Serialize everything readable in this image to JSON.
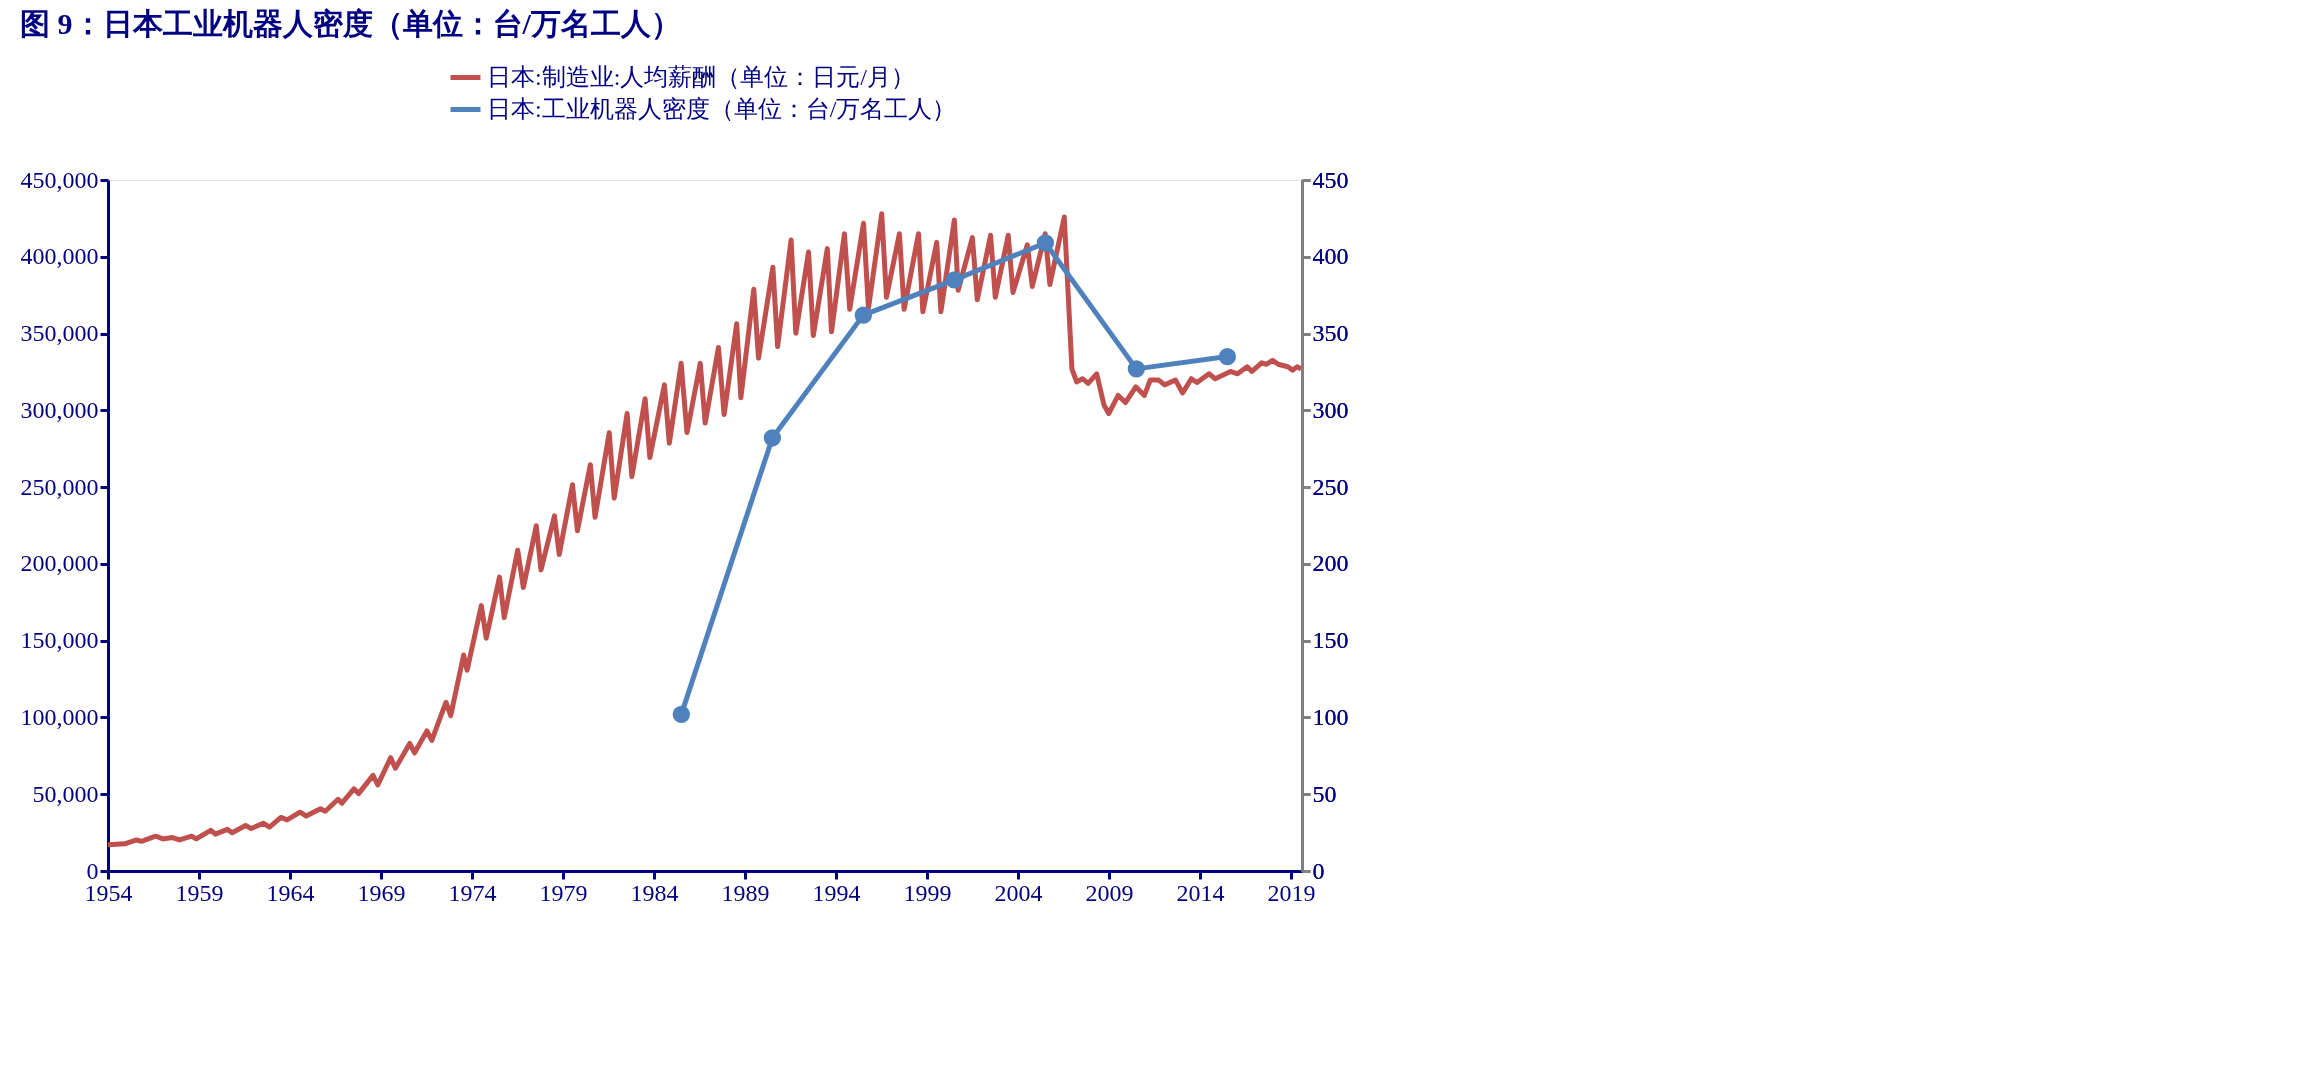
{
  "chart_data": {
    "type": "line",
    "title": "图 9：日本工业机器人密度（单位：台/万名工人）",
    "xlim": [
      1954,
      2019.6
    ],
    "xticks": [
      1954,
      1959,
      1964,
      1969,
      1974,
      1979,
      1984,
      1989,
      1994,
      1999,
      2004,
      2009,
      2014,
      2019
    ],
    "ylim": [
      0,
      450000
    ],
    "yticks": [
      0,
      {
        "value": 50000,
        "label": "50,000"
      },
      {
        "value": 100000,
        "label": "100,000"
      },
      {
        "value": 150000,
        "label": "150,000"
      },
      {
        "value": 200000,
        "label": "200,000"
      },
      {
        "value": 250000,
        "label": "250,000"
      },
      {
        "value": 300000,
        "label": "300,000"
      },
      {
        "value": 350000,
        "label": "350,000"
      },
      {
        "value": 400000,
        "label": "400,000"
      },
      {
        "value": 450000,
        "label": "450,000"
      }
    ],
    "y2lim": [
      0,
      450
    ],
    "y2ticks": [
      0,
      50,
      100,
      150,
      200,
      250,
      300,
      350,
      400,
      450
    ],
    "legend": "top",
    "grid": false,
    "series": [
      {
        "name": "日本:制造业:人均薪酬（单位：日元/月）",
        "color": "#c0504d",
        "marker": "none",
        "x": [
          1954.0,
          1954.92,
          1955.57,
          1955.84,
          1956.62,
          1957.02,
          1957.54,
          1957.93,
          1958.59,
          1958.85,
          1959.64,
          1959.9,
          1960.56,
          1960.82,
          1961.56,
          1961.87,
          1962.53,
          1962.87,
          1963.5,
          1963.84,
          1964.55,
          1964.89,
          1965.67,
          1965.94,
          1966.64,
          1966.85,
          1967.51,
          1967.77,
          1968.56,
          1968.82,
          1969.53,
          1969.79,
          1970.58,
          1970.84,
          1971.52,
          1971.79,
          1972.57,
          1972.83,
          1973.54,
          1973.73,
          1974.51,
          1974.78,
          1975.51,
          1975.77,
          1976.51,
          1976.82,
          1977.53,
          1977.79,
          1978.53,
          1978.79,
          1979.52,
          1979.79,
          1980.5,
          1980.76,
          1981.54,
          1981.81,
          1982.52,
          1982.78,
          1983.51,
          1983.77,
          1984.57,
          1984.84,
          1985.49,
          1985.81,
          1986.54,
          1986.81,
          1987.54,
          1987.85,
          1988.54,
          1988.77,
          1989.48,
          1989.74,
          1990.53,
          1990.79,
          1991.53,
          1991.79,
          1992.49,
          1992.75,
          1993.52,
          1993.75,
          1994.46,
          1994.75,
          1995.51,
          1995.78,
          1996.51,
          1996.77,
          1997.48,
          1997.74,
          1998.53,
          1998.77,
          1999.53,
          1999.76,
          2000.5,
          2000.71,
          2001.49,
          2001.76,
          2002.49,
          2002.75,
          2003.46,
          2003.72,
          2004.51,
          2004.78,
          2005.49,
          2005.75,
          2006.54,
          2006.96,
          2007.22,
          2007.54,
          2007.85,
          2008.32,
          2008.72,
          2008.98,
          2009.5,
          2009.9,
          2010.47,
          2010.94,
          2011.26,
          2011.73,
          2012.05,
          2012.65,
          2013.04,
          2013.52,
          2013.83,
          2014.49,
          2014.83,
          2015.41,
          2015.67,
          2016.06,
          2016.59,
          2016.85,
          2017.38,
          2017.64,
          2017.98,
          2018.29,
          2018.82,
          2019.08,
          2019.34,
          2019.55
        ],
        "values": [
          17100,
          17700,
          20200,
          19300,
          22700,
          20900,
          21800,
          20200,
          22700,
          20900,
          26500,
          24000,
          27100,
          24900,
          29600,
          27700,
          31100,
          28600,
          34900,
          33300,
          38300,
          35800,
          40500,
          38900,
          46700,
          44200,
          53500,
          50400,
          62300,
          56000,
          73800,
          66900,
          83100,
          76900,
          91200,
          85000,
          109900,
          101200,
          140700,
          130700,
          172800,
          151600,
          191400,
          165000,
          208900,
          184600,
          224800,
          196100,
          231300,
          206100,
          251500,
          221600,
          264600,
          230400,
          285500,
          242800,
          297900,
          256800,
          307600,
          269300,
          316600,
          278600,
          330600,
          285500,
          330600,
          291700,
          340900,
          297300,
          356400,
          308200,
          378900,
          334000,
          393200,
          341500,
          410900,
          350200,
          403100,
          348700,
          405300,
          351100,
          415000,
          365800,
          421800,
          366400,
          428000,
          373600,
          415000,
          365800,
          415000,
          364200,
          409400,
          364200,
          424000,
          378200,
          412500,
          372000,
          414000,
          373600,
          414000,
          376700,
          407800,
          380700,
          415000,
          382000,
          425900,
          326900,
          318500,
          320600,
          317500,
          323800,
          303500,
          297900,
          309700,
          305100,
          315300,
          309700,
          319700,
          319700,
          316600,
          319700,
          311300,
          320600,
          318100,
          323800,
          320600,
          323800,
          325300,
          323800,
          328400,
          325300,
          330900,
          330000,
          332500,
          330000,
          328400,
          326200,
          328400,
          326900
        ]
      },
      {
        "name": "日本:工业机器人密度（单位：台/万名工人）",
        "color": "#4f81bd",
        "marker": "circle",
        "axis": "y2",
        "x": [
          1985.5,
          1990.5,
          1995.5,
          2000.5,
          2005.5,
          2010.5,
          2015.5
        ],
        "values": [
          102,
          282,
          362,
          385,
          409,
          327,
          335
        ]
      }
    ]
  }
}
